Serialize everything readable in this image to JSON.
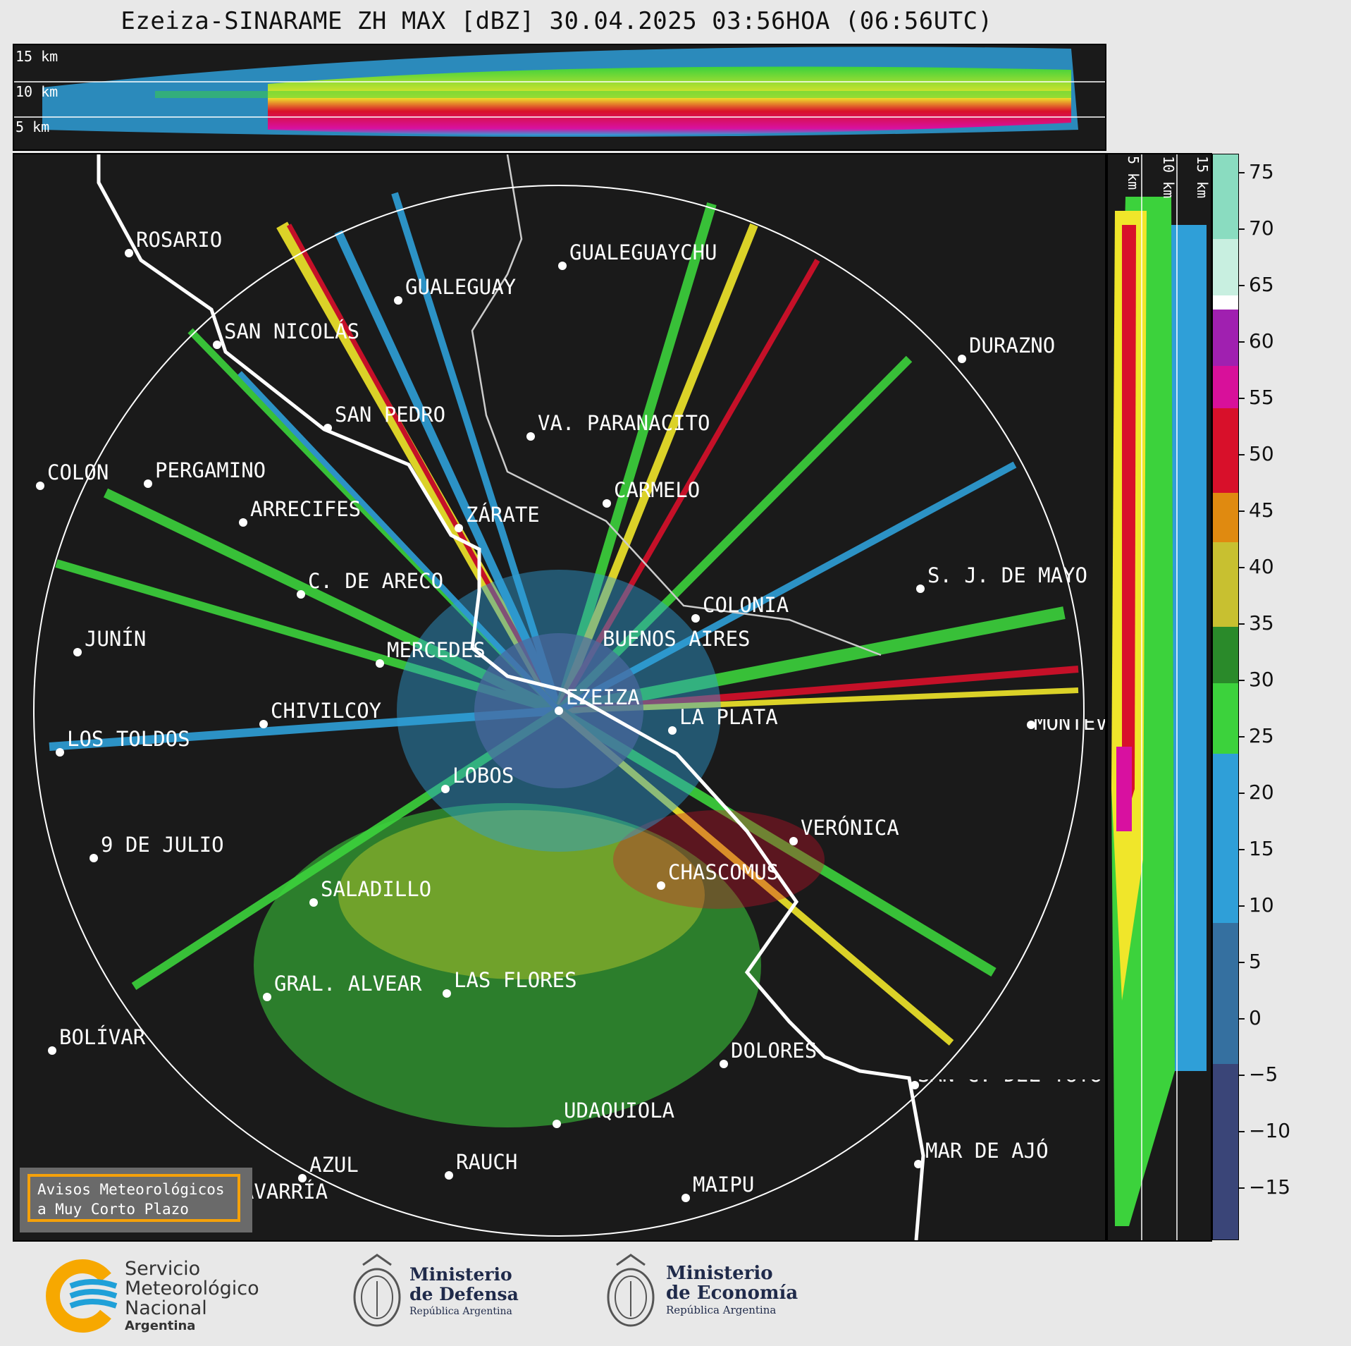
{
  "title": "Ezeiza-SINARAME ZH MAX [dBZ] 30.04.2025 03:56HOA (06:56UTC)",
  "top_panel": {
    "height_labels": [
      "15 km",
      "10 km",
      "5 km"
    ]
  },
  "side_panel": {
    "height_labels": [
      "5 km",
      "10 km",
      "15 km"
    ]
  },
  "colorbar": {
    "ticks": [
      "75",
      "70",
      "65",
      "60",
      "55",
      "50",
      "45",
      "40",
      "35",
      "30",
      "25",
      "20",
      "15",
      "10",
      "5",
      "0",
      "−5",
      "−10",
      "−15"
    ],
    "range_dbz": [
      -20,
      77
    ]
  },
  "cities": [
    {
      "name": "ROSARIO"
    },
    {
      "name": "GUALEGUAYCHU"
    },
    {
      "name": "GUALEGUAY"
    },
    {
      "name": "SAN NICOLÁS"
    },
    {
      "name": "DURAZNO"
    },
    {
      "name": "SAN PEDRO"
    },
    {
      "name": "VA. PARANACITO"
    },
    {
      "name": "COLON"
    },
    {
      "name": "PERGAMINO"
    },
    {
      "name": "CARMELO"
    },
    {
      "name": "ARRECIFES"
    },
    {
      "name": "ZÁRATE"
    },
    {
      "name": "S. J. DE MAYO"
    },
    {
      "name": "C. DE ARECO"
    },
    {
      "name": "COLONIA"
    },
    {
      "name": "JUNÍN"
    },
    {
      "name": "BUENOS AIRES"
    },
    {
      "name": "MERCEDES"
    },
    {
      "name": "MONTEVIDEO"
    },
    {
      "name": "EZEIZA"
    },
    {
      "name": "CHIVILCOY"
    },
    {
      "name": "LA PLATA"
    },
    {
      "name": "LOS TOLDOS"
    },
    {
      "name": "LOBOS"
    },
    {
      "name": "VERÓNICA"
    },
    {
      "name": "9 DE JULIO"
    },
    {
      "name": "CHASCOMUS"
    },
    {
      "name": "SALADILLO"
    },
    {
      "name": "GRAL. ALVEAR"
    },
    {
      "name": "LAS FLORES"
    },
    {
      "name": "BOLÍVAR"
    },
    {
      "name": "DOLORES"
    },
    {
      "name": "SAN C. DEL TUYÚ"
    },
    {
      "name": "UDAQUIOLA"
    },
    {
      "name": "MAR DE AJÓ"
    },
    {
      "name": "AZUL"
    },
    {
      "name": "RAUCH"
    },
    {
      "name": "OLAVARRÍA"
    },
    {
      "name": "MAIPU"
    }
  ],
  "avisos": {
    "line1": "Avisos Meteorológicos",
    "line2": "a Muy Corto Plazo"
  },
  "logos": {
    "smn": {
      "line1": "Servicio",
      "line2": "Meteorológico",
      "line3": "Nacional",
      "line4": "Argentina"
    },
    "defensa": {
      "line1": "Ministerio",
      "line2": "de Defensa",
      "line3": "República Argentina"
    },
    "economia": {
      "line1": "Ministerio",
      "line2": "de Economía",
      "line3": "República Argentina"
    }
  },
  "colors": {
    "background": "#e8e8e8",
    "panel": "#1a1a1a",
    "accent_orange": "#f5a10a",
    "smn_blue": "#1fa0d8",
    "smn_orange": "#f7a800"
  }
}
